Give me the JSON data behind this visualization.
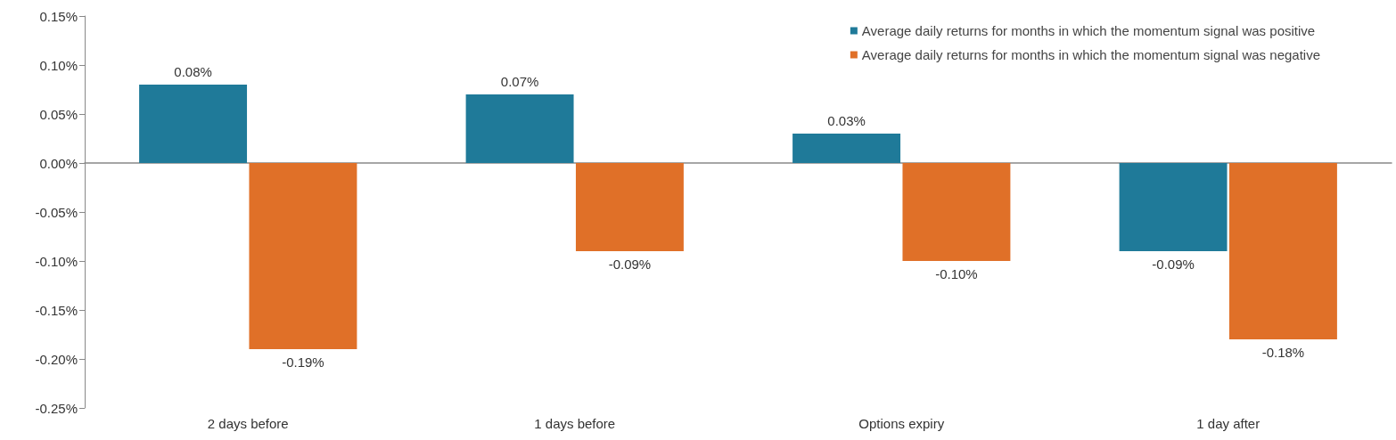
{
  "chart_data": {
    "type": "bar",
    "categories": [
      "2 days before",
      "1 days before",
      "Options expiry",
      "1 day after"
    ],
    "series": [
      {
        "name": "Average daily returns for months in which the momentum signal was positive",
        "color": "#1f7a99",
        "values": [
          0.08,
          0.07,
          0.03,
          -0.09
        ],
        "value_labels": [
          "0.08%",
          "0.07%",
          "0.03%",
          "-0.09%"
        ]
      },
      {
        "name": "Average daily returns for months in which the momentum signal was negative",
        "color": "#e07028",
        "values": [
          -0.19,
          -0.09,
          -0.1,
          -0.18
        ],
        "value_labels": [
          "-0.19%",
          "-0.09%",
          "-0.10%",
          "-0.18%"
        ]
      }
    ],
    "ylim": [
      -0.25,
      0.15
    ],
    "yticks": [
      {
        "value": -0.25,
        "label": "-0.25%"
      },
      {
        "value": -0.2,
        "label": "-0.20%"
      },
      {
        "value": -0.15,
        "label": "-0.15%"
      },
      {
        "value": -0.1,
        "label": "-0.10%"
      },
      {
        "value": -0.05,
        "label": "-0.05%"
      },
      {
        "value": 0,
        "label": "0.00%"
      },
      {
        "value": 0.05,
        "label": "0.05%"
      },
      {
        "value": 0.1,
        "label": "0.10%"
      },
      {
        "value": 0.15,
        "label": "0.15%"
      }
    ],
    "legend": "top right"
  }
}
